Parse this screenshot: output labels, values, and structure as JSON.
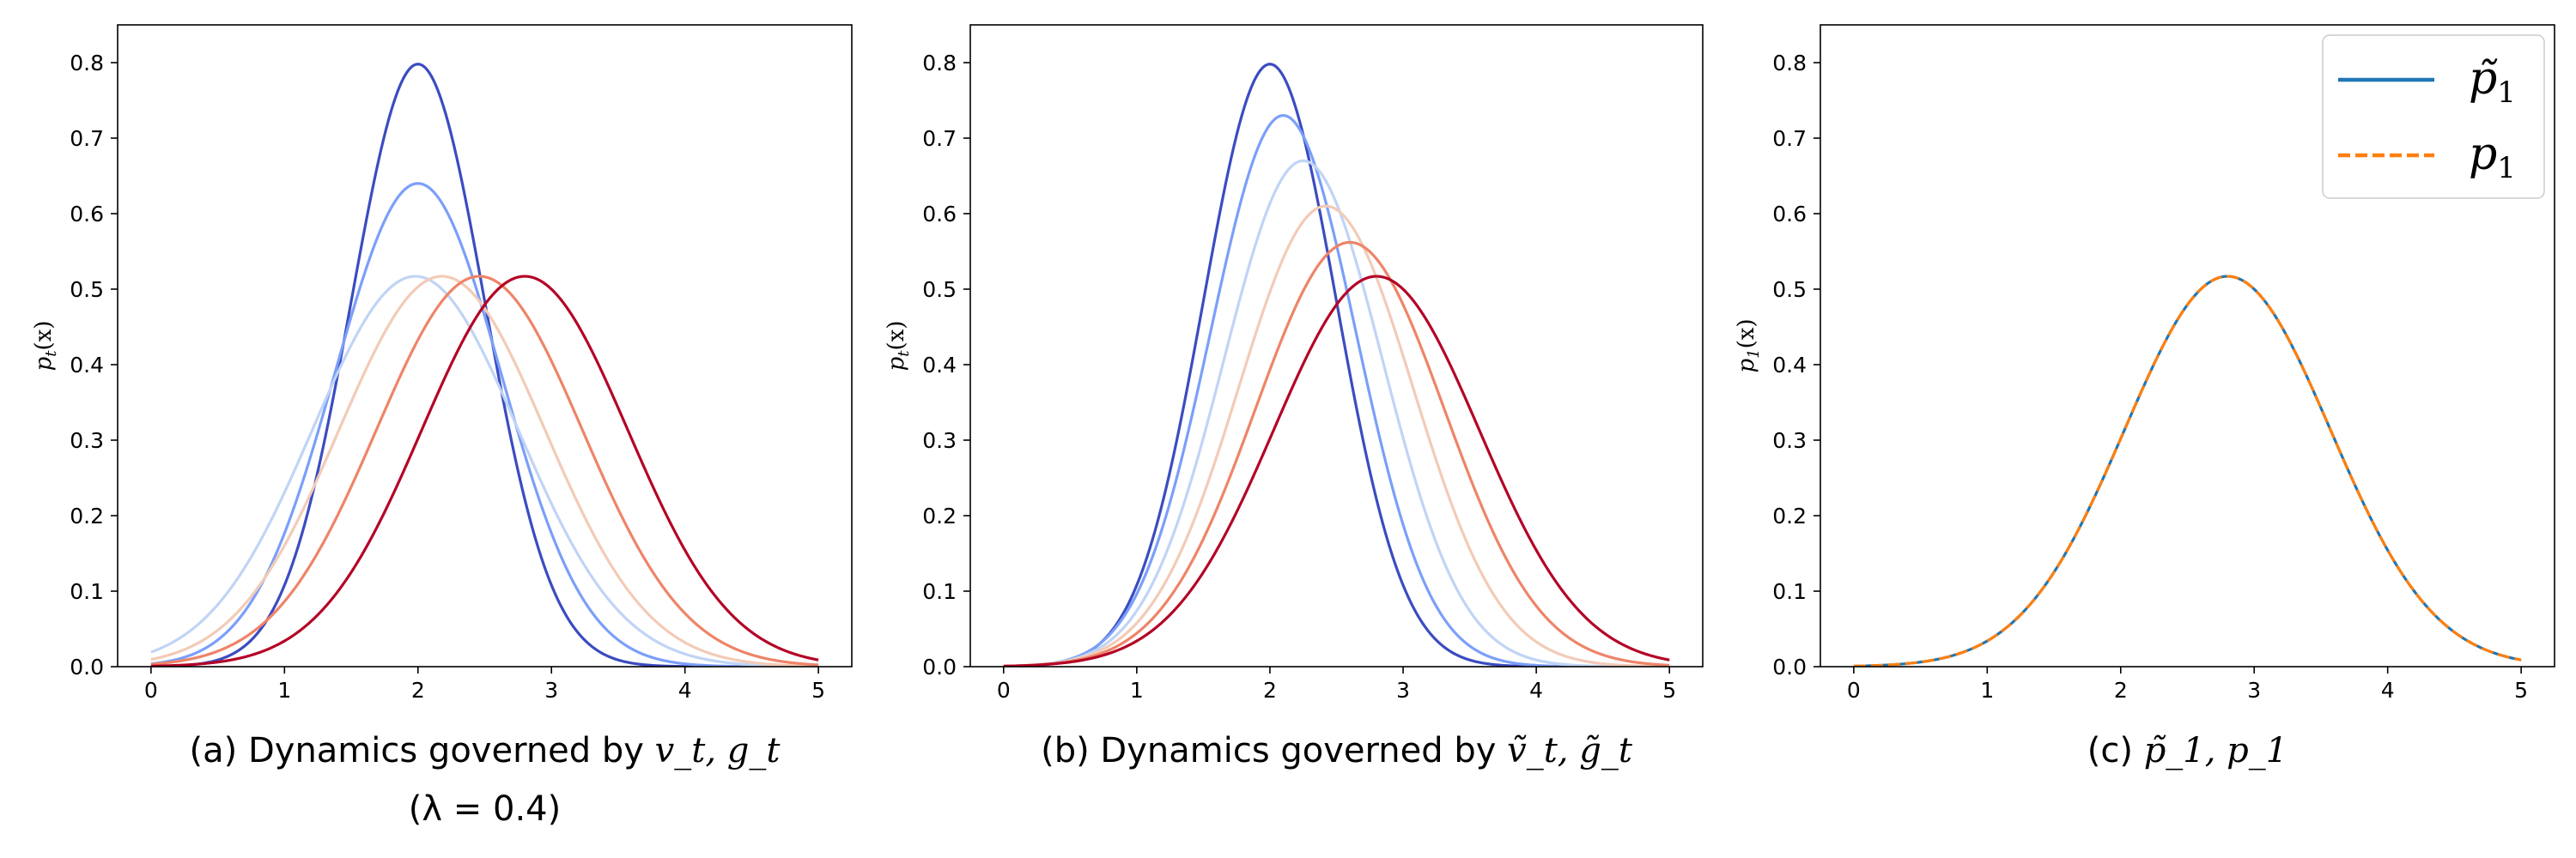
{
  "chart_data": [
    {
      "type": "line",
      "caption": "(a) Dynamics governed by v_t, g_t",
      "caption_prefix": "(a) Dynamics governed by ",
      "caption_math": "v_t, g_t",
      "caption_line2": "(λ = 0.4)",
      "ylabel": "p_t(x)",
      "ylabel_main": "p",
      "ylabel_sub": "t",
      "ylabel_rest": "(x)",
      "xlim": [
        -0.25,
        5.25
      ],
      "ylim": [
        0,
        0.85
      ],
      "xticks": [
        0,
        1,
        2,
        3,
        4,
        5
      ],
      "yticks": [
        0.0,
        0.1,
        0.2,
        0.3,
        0.4,
        0.5,
        0.6,
        0.7,
        0.8
      ],
      "xtick_labels": [
        "0",
        "1",
        "2",
        "3",
        "4",
        "5"
      ],
      "ytick_labels": [
        "0.0",
        "0.1",
        "0.2",
        "0.3",
        "0.4",
        "0.5",
        "0.6",
        "0.7",
        "0.8"
      ],
      "grid": false,
      "legend": "none",
      "series": [
        {
          "color": "#3b4cc0",
          "style": "solid",
          "peak_x": 2.0,
          "peak_y": 0.798
        },
        {
          "color": "#7b9ff9",
          "style": "solid",
          "peak_x": 2.0,
          "peak_y": 0.64
        },
        {
          "color": "#c0d4f5",
          "style": "solid",
          "peak_x": 1.98,
          "peak_y": 0.517
        },
        {
          "color": "#f2cbb7",
          "style": "solid",
          "peak_x": 2.18,
          "peak_y": 0.517
        },
        {
          "color": "#ee8468",
          "style": "solid",
          "peak_x": 2.46,
          "peak_y": 0.517
        },
        {
          "color": "#b40426",
          "style": "solid",
          "peak_x": 2.8,
          "peak_y": 0.517
        }
      ]
    },
    {
      "type": "line",
      "caption": "(b) Dynamics governed by ṽ_t, g̃_t",
      "caption_prefix": "(b) Dynamics governed by ",
      "caption_math": "ṽ_t, g̃_t",
      "caption_line2": "",
      "ylabel": "p_t(x)",
      "ylabel_main": "p",
      "ylabel_sub": "t",
      "ylabel_rest": "(x)",
      "xlim": [
        -0.25,
        5.25
      ],
      "ylim": [
        0,
        0.85
      ],
      "xticks": [
        0,
        1,
        2,
        3,
        4,
        5
      ],
      "yticks": [
        0.0,
        0.1,
        0.2,
        0.3,
        0.4,
        0.5,
        0.6,
        0.7,
        0.8
      ],
      "xtick_labels": [
        "0",
        "1",
        "2",
        "3",
        "4",
        "5"
      ],
      "ytick_labels": [
        "0.0",
        "0.1",
        "0.2",
        "0.3",
        "0.4",
        "0.5",
        "0.6",
        "0.7",
        "0.8"
      ],
      "grid": false,
      "legend": "none",
      "series": [
        {
          "color": "#3b4cc0",
          "style": "solid",
          "peak_x": 2.0,
          "peak_y": 0.798
        },
        {
          "color": "#7b9ff9",
          "style": "solid",
          "peak_x": 2.1,
          "peak_y": 0.73
        },
        {
          "color": "#c0d4f5",
          "style": "solid",
          "peak_x": 2.25,
          "peak_y": 0.67
        },
        {
          "color": "#f2cbb7",
          "style": "solid",
          "peak_x": 2.42,
          "peak_y": 0.61
        },
        {
          "color": "#ee8468",
          "style": "solid",
          "peak_x": 2.6,
          "peak_y": 0.562
        },
        {
          "color": "#b40426",
          "style": "solid",
          "peak_x": 2.8,
          "peak_y": 0.517
        }
      ]
    },
    {
      "type": "line",
      "caption": "(c) p̃_1, p_1",
      "caption_prefix": "(c) ",
      "caption_math": "p̃_1, p_1",
      "caption_line2": "",
      "ylabel": "p_1(x)",
      "ylabel_main": "p",
      "ylabel_sub": "1",
      "ylabel_rest": "(x)",
      "xlim": [
        -0.25,
        5.25
      ],
      "ylim": [
        0,
        0.85
      ],
      "xticks": [
        0,
        1,
        2,
        3,
        4,
        5
      ],
      "yticks": [
        0.0,
        0.1,
        0.2,
        0.3,
        0.4,
        0.5,
        0.6,
        0.7,
        0.8
      ],
      "xtick_labels": [
        "0",
        "1",
        "2",
        "3",
        "4",
        "5"
      ],
      "ytick_labels": [
        "0.0",
        "0.1",
        "0.2",
        "0.3",
        "0.4",
        "0.5",
        "0.6",
        "0.7",
        "0.8"
      ],
      "grid": false,
      "legend": "top-right",
      "series": [
        {
          "name": "p̃1",
          "name_main": "p̃",
          "name_sub": "1",
          "color": "#1f77b4",
          "style": "solid",
          "peak_x": 2.8,
          "peak_y": 0.517
        },
        {
          "name": "p1",
          "name_main": "p",
          "name_sub": "1",
          "color": "#ff7f0e",
          "style": "dashed",
          "peak_x": 2.8,
          "peak_y": 0.517
        }
      ]
    }
  ]
}
